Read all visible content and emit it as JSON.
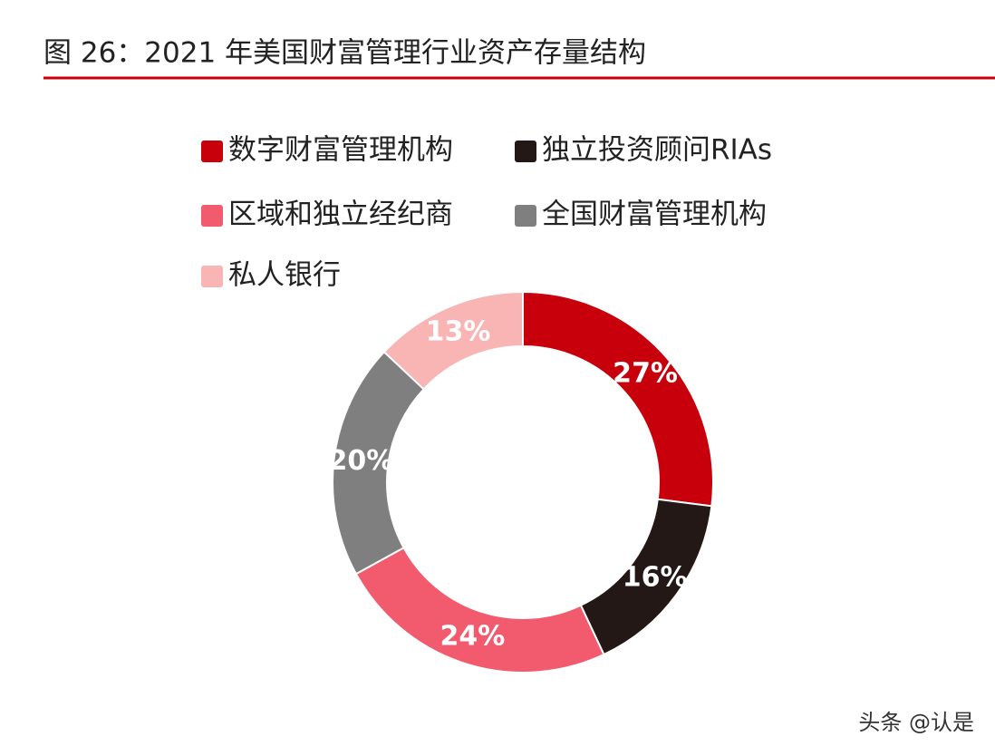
{
  "chart_data": {
    "type": "donut",
    "title": "图 26：2021 年美国财富管理行业资产存量结构",
    "categories": [
      "数字财富管理机构",
      "独立投资顾问RIAs",
      "区域和独立经纪商",
      "全国财富管理机构",
      "私人银行"
    ],
    "values": [
      27,
      16,
      24,
      20,
      13
    ],
    "value_labels": [
      "27%",
      "16%",
      "24%",
      "20%",
      "13%"
    ],
    "colors": [
      "#c8000b",
      "#231815",
      "#f25a6e",
      "#7f7f7f",
      "#f9b4b4"
    ],
    "watermark": "头条 @认是"
  }
}
